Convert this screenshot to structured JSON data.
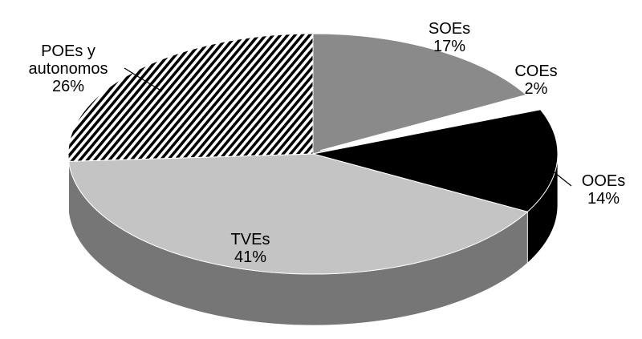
{
  "chart_data": {
    "type": "pie3d",
    "categories": [
      "SOEs",
      "COEs",
      "OOEs",
      "TVEs",
      "POEs y autonomos"
    ],
    "values": [
      17,
      2,
      14,
      41,
      26
    ],
    "value_labels": [
      "17%",
      "2%",
      "14%",
      "41%",
      "26%"
    ],
    "colors": [
      "#8a8a8a",
      "#ffffff",
      "#000000",
      "#c4c4c4",
      "hatch"
    ]
  }
}
